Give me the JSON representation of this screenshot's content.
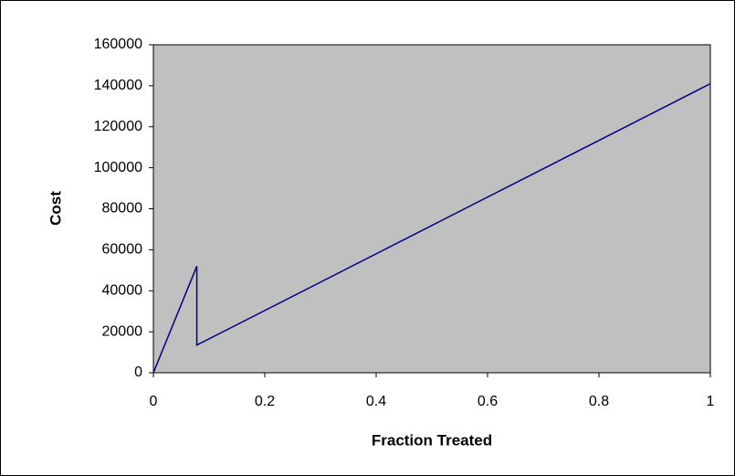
{
  "chart_data": {
    "type": "line",
    "x_label": "Fraction Treated",
    "y_label": "Cost",
    "x": [
      0,
      0.078,
      0.078,
      1
    ],
    "values": [
      0,
      52000,
      13500,
      141000
    ],
    "color": "#000080",
    "plot_background": "#c0c0c0",
    "xlim": [
      0,
      1
    ],
    "xticks": [
      0,
      0.2,
      0.4,
      0.6,
      0.8,
      1
    ],
    "ylim": [
      0,
      160000
    ],
    "yticks": [
      0,
      20000,
      40000,
      60000,
      80000,
      100000,
      120000,
      140000,
      160000
    ]
  }
}
